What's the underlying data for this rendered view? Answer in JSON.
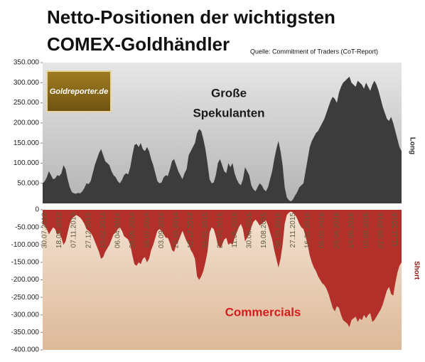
{
  "title_lines": [
    "Netto-Positionen der wichtigsten",
    "COMEX-Goldhändler"
  ],
  "source": "Quelle: Commitment of Traders (CoT-Report)",
  "logo": "Goldreporter.de",
  "chart_data": [
    {
      "type": "area",
      "side_label": "Long",
      "annotation": [
        "Große",
        "Spekulanten"
      ],
      "color": "#3c3c3c",
      "ylim": [
        0,
        350000
      ],
      "yticks": [
        {
          "value": 50000,
          "label": "50.000"
        },
        {
          "value": 100000,
          "label": "100.000"
        },
        {
          "value": 150000,
          "label": "150.000"
        },
        {
          "value": 200000,
          "label": "200.000"
        },
        {
          "value": 250000,
          "label": "250.000"
        },
        {
          "value": 300000,
          "label": "300.000"
        },
        {
          "value": 350000,
          "label": "350.000"
        }
      ],
      "values": [
        50000,
        55000,
        65000,
        80000,
        70000,
        60000,
        62000,
        70000,
        68000,
        75000,
        95000,
        85000,
        60000,
        40000,
        28000,
        25000,
        24000,
        26000,
        25000,
        30000,
        38000,
        50000,
        48000,
        55000,
        75000,
        95000,
        110000,
        125000,
        135000,
        120000,
        105000,
        100000,
        95000,
        80000,
        70000,
        65000,
        55000,
        50000,
        58000,
        70000,
        75000,
        72000,
        90000,
        120000,
        145000,
        148000,
        140000,
        150000,
        135000,
        130000,
        140000,
        130000,
        110000,
        95000,
        75000,
        55000,
        50000,
        52000,
        65000,
        70000,
        68000,
        85000,
        105000,
        110000,
        95000,
        80000,
        70000,
        60000,
        75000,
        85000,
        120000,
        130000,
        140000,
        150000,
        175000,
        185000,
        180000,
        160000,
        135000,
        100000,
        60000,
        50000,
        52000,
        70000,
        100000,
        110000,
        95000,
        80000,
        75000,
        100000,
        90000,
        100000,
        75000,
        60000,
        50000,
        45000,
        60000,
        90000,
        80000,
        70000,
        45000,
        35000,
        30000,
        40000,
        50000,
        45000,
        35000,
        30000,
        40000,
        60000,
        80000,
        110000,
        135000,
        155000,
        130000,
        95000,
        40000,
        15000,
        8000,
        5000,
        10000,
        20000,
        28000,
        40000,
        45000,
        50000,
        80000,
        110000,
        140000,
        155000,
        165000,
        175000,
        180000,
        190000,
        200000,
        210000,
        225000,
        240000,
        255000,
        265000,
        260000,
        250000,
        275000,
        290000,
        300000,
        305000,
        310000,
        315000,
        300000,
        295000,
        290000,
        305000,
        300000,
        295000,
        285000,
        300000,
        290000,
        280000,
        295000,
        305000,
        295000,
        280000,
        260000,
        240000,
        225000,
        210000,
        205000,
        215000,
        200000,
        180000,
        160000,
        140000,
        130000
      ]
    },
    {
      "type": "area",
      "side_label": "Short",
      "annotation": [
        "Commercials"
      ],
      "color": "#b3302a",
      "ylim": [
        -400000,
        0
      ],
      "yticks": [
        0,
        {
          "value": -50000,
          "label": "-50.000"
        },
        {
          "value": -100000,
          "label": "-100.000"
        },
        {
          "value": -150000,
          "label": "-150.000"
        },
        {
          "value": -200000,
          "label": "-200.000"
        },
        {
          "value": -250000,
          "label": "-250.000"
        },
        {
          "value": -300000,
          "label": "-300.000"
        },
        {
          "value": -350000,
          "label": "-350.000"
        },
        {
          "value": -400000,
          "label": "-400.000"
        }
      ],
      "categories": [
        "30.07.2013",
        null,
        null,
        null,
        null,
        null,
        null,
        "18.09.2013",
        null,
        null,
        null,
        null,
        null,
        null,
        "07.11.2013",
        null,
        null,
        null,
        null,
        null,
        null,
        "27.12.2013",
        null,
        null,
        null,
        null,
        null,
        null,
        "15.02.2014",
        null,
        null,
        null,
        null,
        null,
        null,
        "06.04.2014",
        null,
        null,
        null,
        null,
        null,
        null,
        "26.05.2014",
        null,
        null,
        null,
        null,
        null,
        null,
        "15.07.2014",
        null,
        null,
        null,
        null,
        null,
        null,
        "03.09.2014",
        null,
        null,
        null,
        null,
        null,
        null,
        "23.10.2014",
        null,
        null,
        null,
        null,
        null,
        null,
        "12.12.2014",
        null,
        null,
        null,
        null,
        null,
        null,
        "31.01.2015",
        null,
        null,
        null,
        null,
        null,
        null,
        "22.03.2015",
        null,
        null,
        null,
        null,
        null,
        null,
        "11.05.2015",
        null,
        null,
        null,
        null,
        null,
        null,
        "30.06.2015",
        null,
        null,
        null,
        null,
        null,
        null,
        "19.08.2015",
        null,
        null,
        null,
        null,
        null,
        null,
        "08.10.2015",
        null,
        null,
        null,
        null,
        null,
        null,
        "27.11.2015",
        null,
        null,
        null,
        null,
        null,
        null,
        "16.01.2016",
        null,
        null,
        null,
        null,
        null,
        null,
        "06.03.2016",
        null,
        null,
        null,
        null,
        null,
        null,
        "25.04.2016",
        null,
        null,
        null,
        null,
        null,
        null,
        "14.06.2016",
        null,
        null,
        null,
        null,
        null,
        null,
        "03.08.2016",
        null,
        null,
        null,
        null,
        null,
        null,
        "22.09.2016",
        null,
        null,
        null,
        null,
        null,
        null,
        "11.11.2016",
        null,
        null,
        null,
        null
      ],
      "values": [
        -40000,
        -45000,
        -55000,
        -70000,
        -60000,
        -50000,
        -55000,
        -70000,
        -65000,
        -80000,
        -100000,
        -90000,
        -65000,
        -40000,
        -25000,
        -20000,
        -15000,
        -18000,
        -22000,
        -30000,
        -40000,
        -55000,
        -60000,
        -65000,
        -75000,
        -90000,
        -105000,
        -120000,
        -140000,
        -135000,
        -120000,
        -110000,
        -100000,
        -85000,
        -70000,
        -65000,
        -55000,
        -50000,
        -60000,
        -75000,
        -80000,
        -85000,
        -100000,
        -130000,
        -155000,
        -160000,
        -150000,
        -155000,
        -140000,
        -135000,
        -150000,
        -140000,
        -115000,
        -100000,
        -80000,
        -60000,
        -55000,
        -60000,
        -70000,
        -80000,
        -80000,
        -95000,
        -115000,
        -120000,
        -100000,
        -90000,
        -75000,
        -60000,
        -75000,
        -90000,
        -100000,
        -115000,
        -125000,
        -140000,
        -190000,
        -200000,
        -190000,
        -175000,
        -150000,
        -120000,
        -65000,
        -50000,
        -55000,
        -75000,
        -100000,
        -110000,
        -100000,
        -85000,
        -80000,
        -100000,
        -95000,
        -100000,
        -80000,
        -65000,
        -50000,
        -40000,
        -55000,
        -90000,
        -80000,
        -70000,
        -50000,
        -35000,
        -28000,
        -35000,
        -45000,
        -40000,
        -35000,
        -30000,
        -45000,
        -65000,
        -85000,
        -115000,
        -140000,
        -165000,
        -140000,
        -100000,
        -40000,
        -15000,
        -8000,
        -5000,
        -8000,
        -15000,
        -25000,
        -40000,
        -50000,
        -55000,
        -75000,
        -100000,
        -130000,
        -150000,
        -165000,
        -175000,
        -190000,
        -200000,
        -210000,
        -215000,
        -225000,
        -240000,
        -260000,
        -280000,
        -290000,
        -275000,
        -280000,
        -300000,
        -315000,
        -320000,
        -325000,
        -335000,
        -315000,
        -310000,
        -305000,
        -320000,
        -310000,
        -315000,
        -300000,
        -310000,
        -300000,
        -295000,
        -320000,
        -315000,
        -305000,
        -295000,
        -285000,
        -270000,
        -250000,
        -230000,
        -220000,
        -240000,
        -245000,
        -210000,
        -180000,
        -160000,
        -150000
      ]
    }
  ]
}
